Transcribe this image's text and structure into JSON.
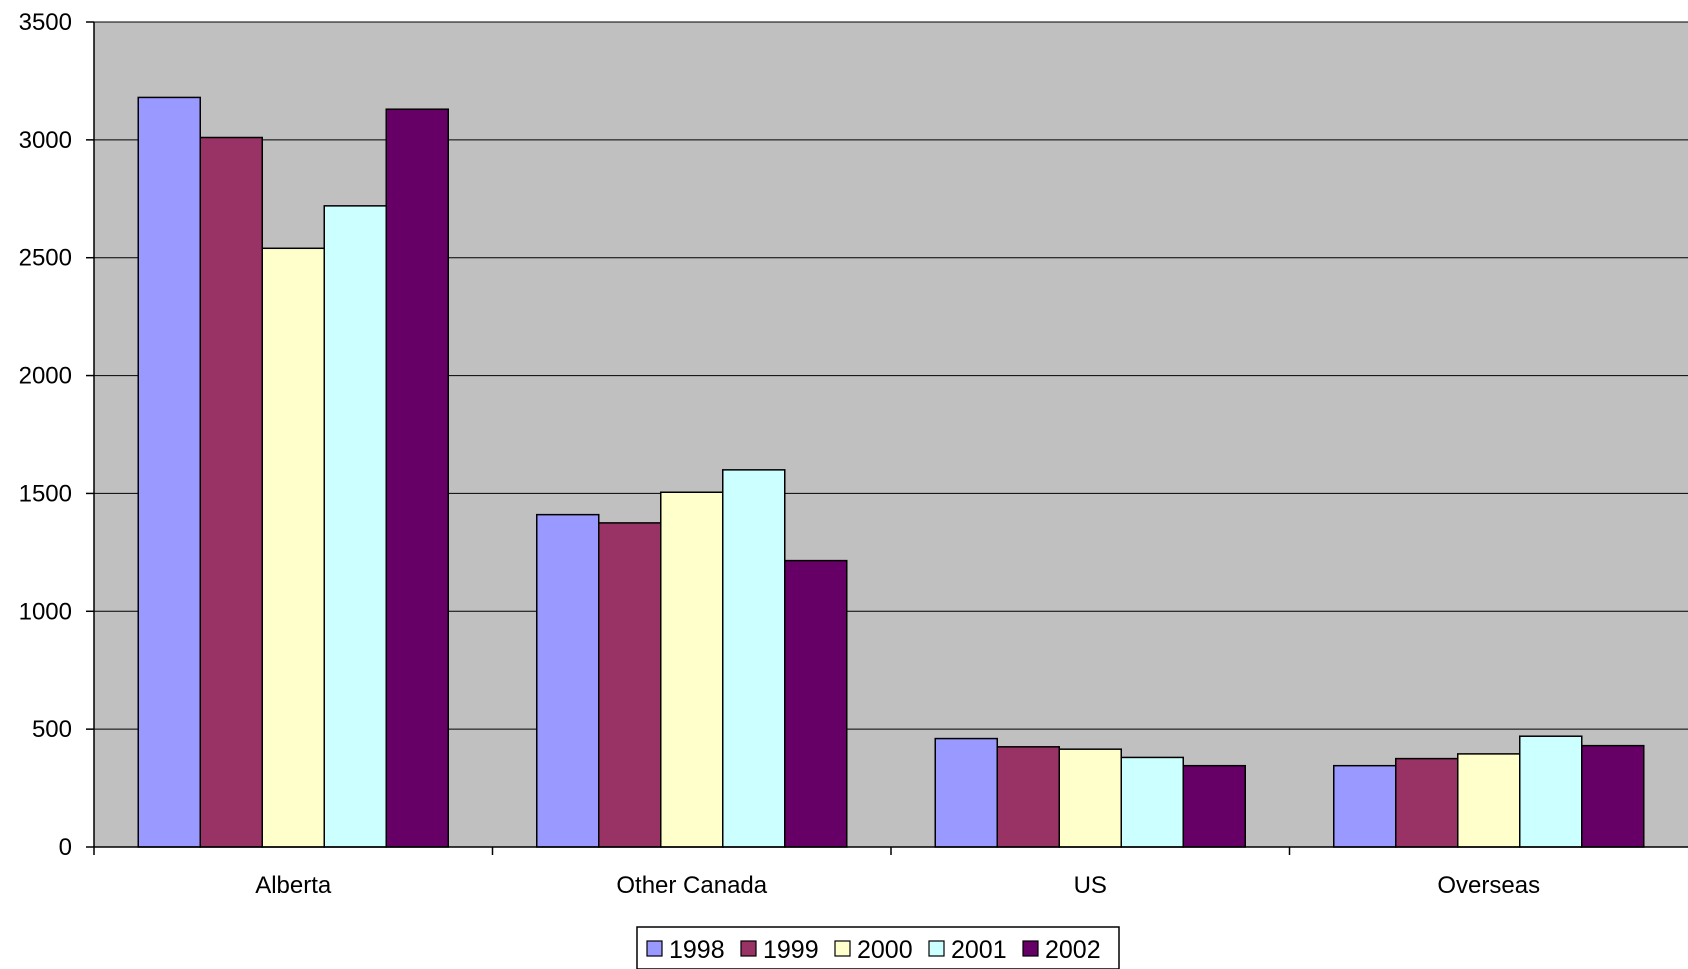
{
  "chart_data": {
    "type": "bar",
    "title": "",
    "xlabel": "",
    "ylabel": "",
    "categories": [
      "Alberta",
      "Other Canada",
      "US",
      "Overseas"
    ],
    "series": [
      {
        "name": "1998",
        "color": "#9999FF",
        "values": [
          3180,
          1410,
          460,
          345
        ]
      },
      {
        "name": "1999",
        "color": "#993366",
        "values": [
          3010,
          1375,
          425,
          375
        ]
      },
      {
        "name": "2000",
        "color": "#FFFFCC",
        "values": [
          2540,
          1505,
          415,
          395
        ]
      },
      {
        "name": "2001",
        "color": "#CCFFFF",
        "values": [
          2720,
          1600,
          380,
          470
        ]
      },
      {
        "name": "2002",
        "color": "#660066",
        "values": [
          3130,
          1215,
          345,
          430
        ]
      }
    ],
    "ylim": [
      0,
      3500
    ],
    "yticks": [
      0,
      500,
      1000,
      1500,
      2000,
      2500,
      3000,
      3500
    ],
    "grid": true,
    "plot_background": "#C0C0C0",
    "legend_position": "bottom"
  }
}
